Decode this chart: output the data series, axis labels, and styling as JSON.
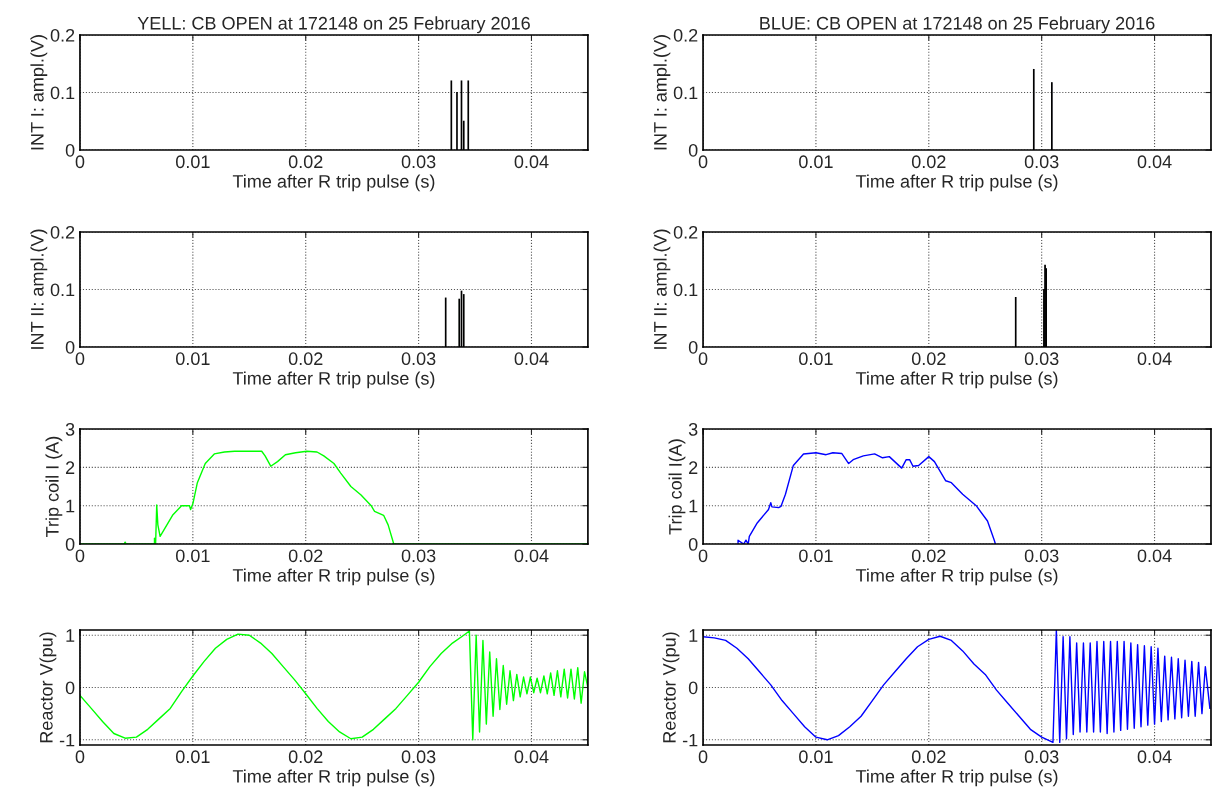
{
  "chart_data": [
    {
      "type": "bar",
      "title": "YELL: CB OPEN at 172148 on 25 February 2016",
      "xlabel": "Time after R trip pulse (s)",
      "ylabel": "INT I: ampl.(V)",
      "x": [
        0.0329,
        0.0334,
        0.0338,
        0.034,
        0.0344
      ],
      "values": [
        0.12,
        0.1,
        0.12,
        0.05,
        0.12
      ],
      "colors": [
        "#008000",
        "#ffffff",
        "#008000",
        "#000000",
        "#008000"
      ],
      "xlim": [
        0,
        0.045
      ],
      "xticks": [
        0,
        0.01,
        0.02,
        0.03,
        0.04
      ],
      "ylim": [
        0,
        0.2
      ],
      "yticks": [
        0,
        0.1,
        0.2
      ],
      "grid": true
    },
    {
      "type": "bar",
      "title": "BLUE: CB OPEN at 172148 on 25 February 2016",
      "xlabel": "Time after R trip pulse (s)",
      "ylabel": "INT I: ampl.(V)",
      "x": [
        0.0293,
        0.0309
      ],
      "values": [
        0.14,
        0.117
      ],
      "colors": [
        "#000080",
        "#000080"
      ],
      "xlim": [
        0,
        0.045
      ],
      "xticks": [
        0,
        0.01,
        0.02,
        0.03,
        0.04
      ],
      "ylim": [
        0,
        0.2
      ],
      "yticks": [
        0,
        0.1,
        0.2
      ],
      "grid": true
    },
    {
      "type": "bar",
      "xlabel": "Time after R trip pulse (s)",
      "ylabel": "INT II: ampl.(V)",
      "x": [
        0.0324,
        0.0336,
        0.0338,
        0.034
      ],
      "values": [
        0.085,
        0.083,
        0.097,
        0.091
      ],
      "colors": [
        "#008000",
        "#008000",
        "#008000",
        "#008000"
      ],
      "xlim": [
        0,
        0.045
      ],
      "xticks": [
        0,
        0.01,
        0.02,
        0.03,
        0.04
      ],
      "ylim": [
        0,
        0.2
      ],
      "yticks": [
        0,
        0.1,
        0.2
      ],
      "grid": true
    },
    {
      "type": "bar",
      "xlabel": "Time after R trip pulse (s)",
      "ylabel": "INT II: ampl.(V)",
      "x": [
        0.0277,
        0.0302,
        0.0303,
        0.0304
      ],
      "values": [
        0.086,
        0.1,
        0.142,
        0.136
      ],
      "colors": [
        "#000080",
        "#000000",
        "#000000",
        "#000000"
      ],
      "xlim": [
        0,
        0.045
      ],
      "xticks": [
        0,
        0.01,
        0.02,
        0.03,
        0.04
      ],
      "ylim": [
        0,
        0.2
      ],
      "yticks": [
        0,
        0.1,
        0.2
      ],
      "grid": true
    },
    {
      "type": "line",
      "xlabel": "Time after R trip pulse (s)",
      "ylabel": "Trip coil I (A)",
      "xlim": [
        0,
        0.045
      ],
      "xticks": [
        0,
        0.01,
        0.02,
        0.03,
        0.04
      ],
      "ylim": [
        0,
        3
      ],
      "yticks": [
        0,
        1,
        2,
        3
      ],
      "grid": true,
      "series": [
        {
          "color": "#00ff00",
          "x": [
            0,
            0.0039,
            0.004,
            0.0041,
            0.0066,
            0.0066,
            0.0067,
            0.0068,
            0.0069,
            0.0071,
            0.0082,
            0.009,
            0.0097,
            0.0098,
            0.01,
            0.0104,
            0.0111,
            0.0119,
            0.0128,
            0.0137,
            0.0149,
            0.0161,
            0.0164,
            0.0169,
            0.0175,
            0.0182,
            0.0191,
            0.0201,
            0.021,
            0.0216,
            0.0225,
            0.0231,
            0.024,
            0.0249,
            0.0258,
            0.0261,
            0.0269,
            0.0273,
            0.0278,
            0.045
          ],
          "values": [
            0,
            0,
            0.05,
            0,
            0,
            0.15,
            0,
            1.02,
            0.5,
            0.2,
            0.75,
            1.0,
            1.0,
            0.9,
            1.05,
            1.6,
            2.1,
            2.35,
            2.4,
            2.42,
            2.42,
            2.42,
            2.3,
            2.03,
            2.15,
            2.33,
            2.38,
            2.42,
            2.4,
            2.3,
            2.1,
            1.85,
            1.5,
            1.28,
            1.0,
            0.85,
            0.75,
            0.5,
            0,
            0
          ]
        }
      ]
    },
    {
      "type": "line",
      "xlabel": "Time after R trip pulse (s)",
      "ylabel": "Trip coil I(A)",
      "xlim": [
        0,
        0.045
      ],
      "xticks": [
        0,
        0.01,
        0.02,
        0.03,
        0.04
      ],
      "ylim": [
        0,
        3
      ],
      "yticks": [
        0,
        1,
        2,
        3
      ],
      "grid": true,
      "series": [
        {
          "color": "#0000ff",
          "x": [
            0.0031,
            0.0031,
            0.0036,
            0.0038,
            0.004,
            0.0041,
            0.0048,
            0.0058,
            0.006,
            0.0061,
            0.0067,
            0.0069,
            0.0073,
            0.008,
            0.0089,
            0.01,
            0.0109,
            0.0115,
            0.0123,
            0.0129,
            0.0133,
            0.0142,
            0.0152,
            0.0159,
            0.0165,
            0.0176,
            0.018,
            0.0183,
            0.0186,
            0.0191,
            0.02,
            0.0205,
            0.0215,
            0.022,
            0.023,
            0.0242,
            0.0252,
            0.0258,
            0.0259
          ],
          "values": [
            0,
            0.1,
            0,
            0.1,
            0,
            0.2,
            0.55,
            0.9,
            1.08,
            0.97,
            0.95,
            0.98,
            1.3,
            2.05,
            2.35,
            2.38,
            2.33,
            2.38,
            2.36,
            2.1,
            2.2,
            2.3,
            2.35,
            2.25,
            2.28,
            1.98,
            2.2,
            2.2,
            2.03,
            2.05,
            2.28,
            2.15,
            1.65,
            1.6,
            1.3,
            1.0,
            0.6,
            0.1,
            0
          ]
        }
      ]
    },
    {
      "type": "line",
      "xlabel": "Time after R trip pulse (s)",
      "ylabel": "Reactor V(pu)",
      "xlim": [
        0,
        0.045
      ],
      "xticks": [
        0,
        0.01,
        0.02,
        0.03,
        0.04
      ],
      "ylim": [
        -1.1,
        1.1
      ],
      "yticks": [
        -1,
        0,
        1
      ],
      "grid": true,
      "series": [
        {
          "color": "#00ff00",
          "x": [
            0,
            0.001,
            0.002,
            0.003,
            0.004,
            0.005,
            0.006,
            0.007,
            0.008,
            0.009,
            0.01,
            0.011,
            0.012,
            0.013,
            0.014,
            0.015,
            0.016,
            0.017,
            0.018,
            0.019,
            0.02,
            0.021,
            0.022,
            0.023,
            0.024,
            0.025,
            0.026,
            0.027,
            0.028,
            0.029,
            0.03,
            0.031,
            0.032,
            0.033,
            0.034,
            0.0345,
            0.0348,
            0.0351,
            0.0354,
            0.0357,
            0.036,
            0.0363,
            0.0366,
            0.0369,
            0.0372,
            0.0375,
            0.0378,
            0.0381,
            0.0384,
            0.0387,
            0.039,
            0.0393,
            0.0396,
            0.0399,
            0.0402,
            0.0405,
            0.0408,
            0.0411,
            0.0414,
            0.0417,
            0.042,
            0.0423,
            0.0426,
            0.0429,
            0.0432,
            0.0435,
            0.0438,
            0.0441,
            0.0444,
            0.0447,
            0.045
          ],
          "values": [
            -0.15,
            -0.4,
            -0.65,
            -0.88,
            -0.97,
            -0.95,
            -0.8,
            -0.6,
            -0.4,
            -0.08,
            0.22,
            0.5,
            0.75,
            0.92,
            1.02,
            1.0,
            0.85,
            0.65,
            0.4,
            0.15,
            -0.12,
            -0.4,
            -0.65,
            -0.85,
            -0.98,
            -0.95,
            -0.8,
            -0.6,
            -0.4,
            -0.15,
            0.1,
            0.4,
            0.65,
            0.85,
            1.0,
            1.08,
            -1.0,
            1.0,
            -0.85,
            0.9,
            -0.7,
            0.68,
            -0.55,
            0.55,
            -0.42,
            0.42,
            -0.32,
            0.32,
            -0.25,
            0.25,
            -0.18,
            0.2,
            -0.12,
            0.2,
            -0.1,
            0.18,
            -0.1,
            0.22,
            -0.12,
            0.28,
            -0.15,
            0.32,
            -0.18,
            0.35,
            -0.2,
            0.35,
            -0.22,
            0.38,
            -0.3,
            0.3,
            0.0
          ]
        }
      ]
    },
    {
      "type": "line",
      "xlabel": "Time after R trip pulse (s)",
      "ylabel": "Reactor V(pu)",
      "xlim": [
        0,
        0.045
      ],
      "xticks": [
        0,
        0.01,
        0.02,
        0.03,
        0.04
      ],
      "ylim": [
        -1.1,
        1.1
      ],
      "yticks": [
        -1,
        0,
        1
      ],
      "grid": true,
      "series": [
        {
          "color": "#0000ff",
          "x": [
            0,
            0.001,
            0.002,
            0.003,
            0.004,
            0.005,
            0.006,
            0.007,
            0.008,
            0.009,
            0.01,
            0.011,
            0.012,
            0.013,
            0.014,
            0.015,
            0.016,
            0.017,
            0.018,
            0.019,
            0.02,
            0.021,
            0.022,
            0.023,
            0.024,
            0.025,
            0.026,
            0.027,
            0.028,
            0.029,
            0.03,
            0.031,
            0.0313,
            0.0316,
            0.0319,
            0.0322,
            0.0325,
            0.0328,
            0.0331,
            0.0334,
            0.0337,
            0.034,
            0.0343,
            0.0346,
            0.0349,
            0.0352,
            0.0355,
            0.0358,
            0.0361,
            0.0364,
            0.0367,
            0.037,
            0.0373,
            0.0376,
            0.0379,
            0.0382,
            0.0385,
            0.0388,
            0.0391,
            0.0394,
            0.0397,
            0.04,
            0.0403,
            0.0406,
            0.0409,
            0.0412,
            0.0415,
            0.0418,
            0.0421,
            0.0424,
            0.0427,
            0.043,
            0.0433,
            0.0436,
            0.0439,
            0.0442,
            0.0445,
            0.0449
          ],
          "values": [
            0.97,
            0.95,
            0.9,
            0.75,
            0.55,
            0.3,
            0.05,
            -0.25,
            -0.5,
            -0.75,
            -0.95,
            -1.0,
            -0.92,
            -0.75,
            -0.55,
            -0.25,
            0.05,
            0.3,
            0.55,
            0.78,
            0.92,
            0.98,
            0.9,
            0.7,
            0.45,
            0.25,
            -0.05,
            -0.3,
            -0.55,
            -0.8,
            -0.95,
            -1.05,
            1.1,
            -1.05,
            0.97,
            -0.98,
            0.97,
            -0.9,
            0.85,
            -0.85,
            0.85,
            -0.85,
            0.85,
            -0.85,
            0.88,
            -0.85,
            0.88,
            -0.88,
            0.88,
            -0.85,
            0.88,
            -0.82,
            0.88,
            -0.8,
            0.85,
            -0.78,
            0.82,
            -0.75,
            0.8,
            -0.72,
            0.78,
            -0.7,
            0.75,
            -0.65,
            0.6,
            -0.62,
            0.58,
            -0.6,
            0.55,
            -0.58,
            0.52,
            -0.55,
            0.5,
            -0.55,
            0.48,
            -0.5,
            0.4,
            -0.4
          ]
        }
      ]
    }
  ]
}
